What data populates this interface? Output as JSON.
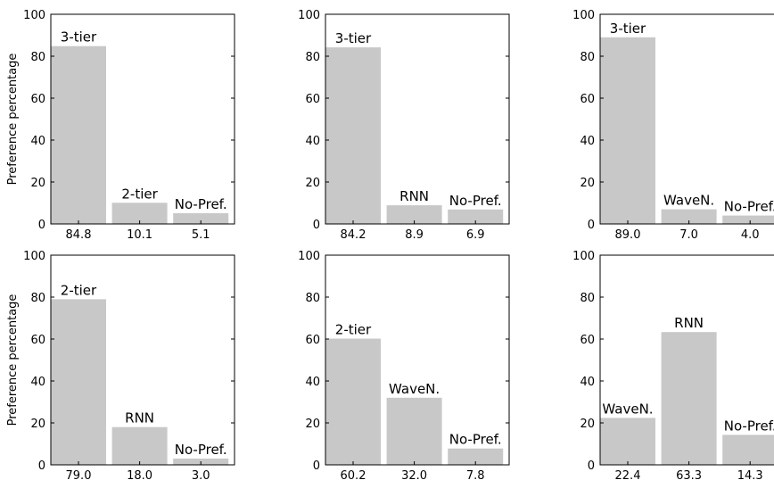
{
  "figure": {
    "bar_color": "#c8c8c8",
    "axis_color": "#000000"
  },
  "chart_data": [
    {
      "type": "bar",
      "categories": [
        "3-tier",
        "2-tier",
        "No-Pref."
      ],
      "values": [
        84.8,
        10.1,
        5.1
      ],
      "tick_labels": [
        "84.8",
        "10.1",
        "5.1"
      ],
      "ylabel": "Preference percentage",
      "ylim": [
        0,
        100
      ],
      "yticks": [
        "0",
        "20",
        "40",
        "60",
        "80",
        "100"
      ]
    },
    {
      "type": "bar",
      "categories": [
        "3-tier",
        "RNN",
        "No-Pref."
      ],
      "values": [
        84.2,
        8.9,
        6.9
      ],
      "tick_labels": [
        "84.2",
        "8.9",
        "6.9"
      ],
      "ylabel": "",
      "ylim": [
        0,
        100
      ],
      "yticks": [
        "0",
        "20",
        "40",
        "60",
        "80",
        "100"
      ]
    },
    {
      "type": "bar",
      "categories": [
        "3-tier",
        "WaveN.",
        "No-Pref."
      ],
      "values": [
        89.0,
        7.0,
        4.0
      ],
      "tick_labels": [
        "89.0",
        "7.0",
        "4.0"
      ],
      "ylabel": "",
      "ylim": [
        0,
        100
      ],
      "yticks": [
        "0",
        "20",
        "40",
        "60",
        "80",
        "100"
      ]
    },
    {
      "type": "bar",
      "categories": [
        "2-tier",
        "RNN",
        "No-Pref."
      ],
      "values": [
        79.0,
        18.0,
        3.0
      ],
      "tick_labels": [
        "79.0",
        "18.0",
        "3.0"
      ],
      "ylabel": "Preference percentage",
      "ylim": [
        0,
        100
      ],
      "yticks": [
        "0",
        "20",
        "40",
        "60",
        "80",
        "100"
      ]
    },
    {
      "type": "bar",
      "categories": [
        "2-tier",
        "WaveN.",
        "No-Pref."
      ],
      "values": [
        60.2,
        32.0,
        7.8
      ],
      "tick_labels": [
        "60.2",
        "32.0",
        "7.8"
      ],
      "ylabel": "",
      "ylim": [
        0,
        100
      ],
      "yticks": [
        "0",
        "20",
        "40",
        "60",
        "80",
        "100"
      ]
    },
    {
      "type": "bar",
      "categories": [
        "WaveN.",
        "RNN",
        "No-Pref."
      ],
      "values": [
        22.4,
        63.3,
        14.3
      ],
      "tick_labels": [
        "22.4",
        "63.3",
        "14.3"
      ],
      "ylabel": "",
      "ylim": [
        0,
        100
      ],
      "yticks": [
        "0",
        "20",
        "40",
        "60",
        "80",
        "100"
      ]
    }
  ]
}
